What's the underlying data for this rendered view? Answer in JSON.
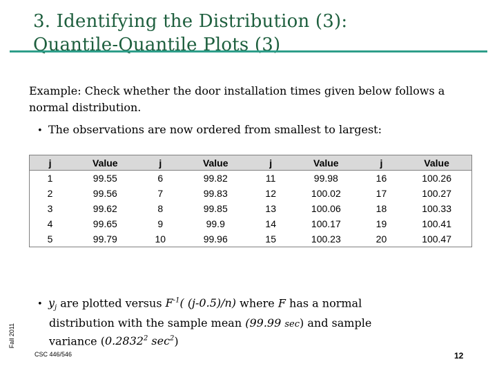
{
  "title": {
    "line1": "3. Identifying the Distribution (3):",
    "line2": "Quantile-Quantile Plots (3)"
  },
  "intro": "Example: Check whether the door installation times given below follows a normal distribution.",
  "bullet1": "The observations are now ordered from smallest to largest:",
  "table": {
    "headers": [
      "j",
      "Value",
      "j",
      "Value",
      "j",
      "Value",
      "j",
      "Value"
    ],
    "rows": [
      [
        "1",
        "99.55",
        "6",
        "99.82",
        "11",
        "99.98",
        "16",
        "100.26"
      ],
      [
        "2",
        "99.56",
        "7",
        "99.83",
        "12",
        "100.02",
        "17",
        "100.27"
      ],
      [
        "3",
        "99.62",
        "8",
        "99.85",
        "13",
        "100.06",
        "18",
        "100.33"
      ],
      [
        "4",
        "99.65",
        "9",
        "99.9",
        "14",
        "100.17",
        "19",
        "100.41"
      ],
      [
        "5",
        "99.79",
        "10",
        "99.96",
        "15",
        "100.23",
        "20",
        "100.47"
      ]
    ]
  },
  "bullet2": {
    "y": "y",
    "j_sub": "j",
    "t1": "are plotted versus",
    "finv_F": "F",
    "finv_sup": "-1",
    "finv_arg": "( (j-0.5)/n)",
    "t2": "where",
    "F": "F",
    "t3": "has a normal",
    "t4": "distribution with the sample mean",
    "mean": "(99.99",
    "sec": "sec",
    "close": ")",
    "t5": "and sample",
    "t6": "variance (",
    "var": "0.2832",
    "var_sup": "2",
    "sec2": "sec",
    "sec2_sup": "2",
    "t7": ")"
  },
  "side_label": "Fall 2011",
  "footer": {
    "course": "CSC 446/546",
    "page": "12"
  }
}
